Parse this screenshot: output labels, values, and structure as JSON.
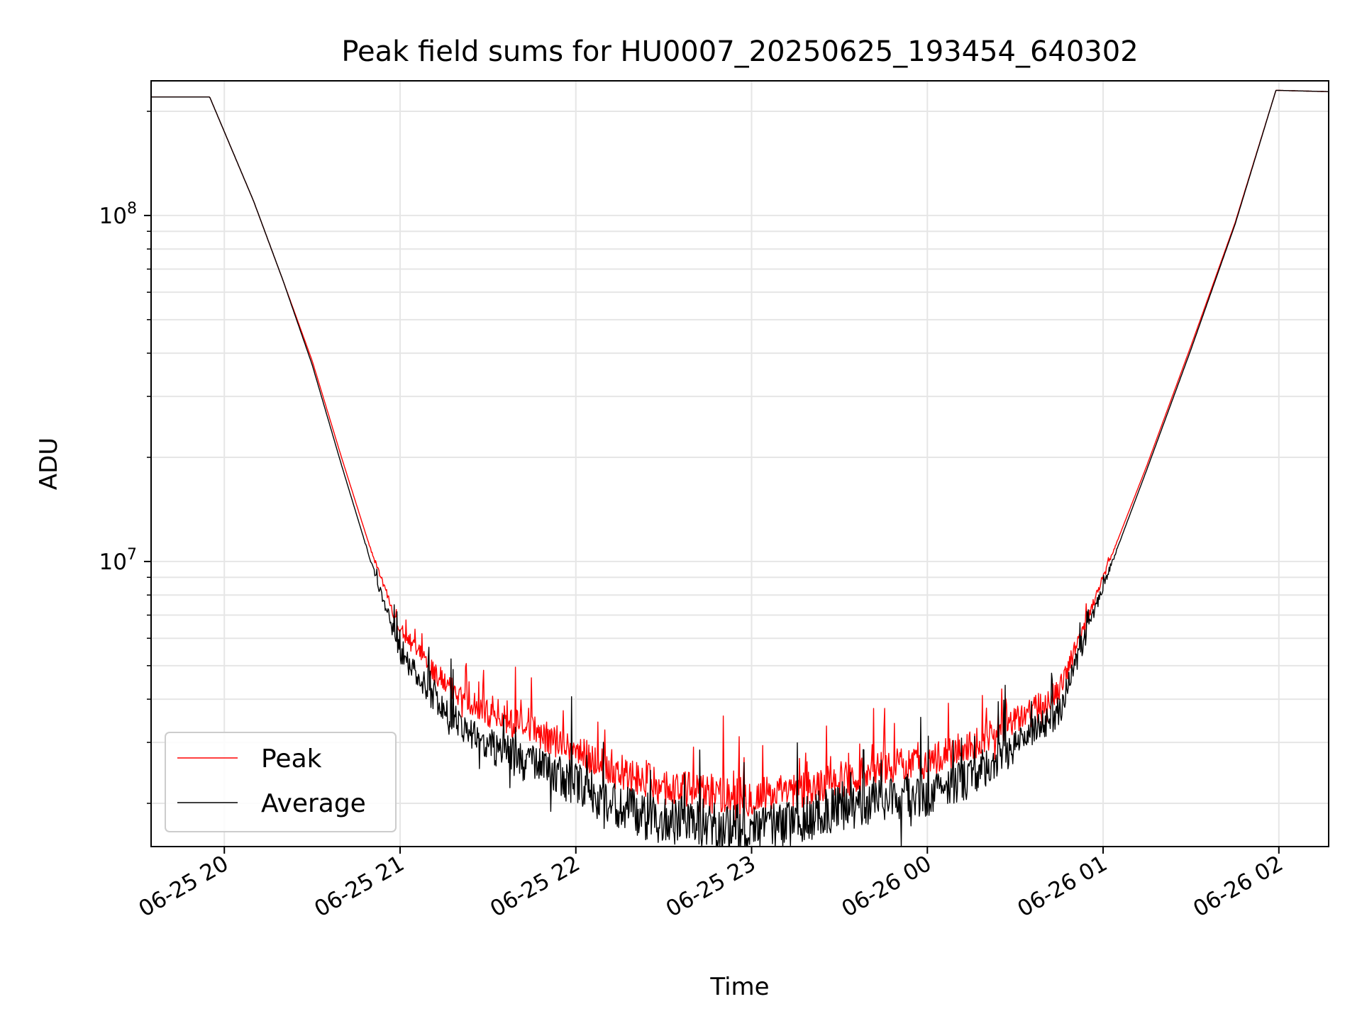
{
  "chart_data": {
    "type": "line",
    "title": "Peak field sums for HU0007_20250625_193454_640302",
    "xlabel": "Time",
    "ylabel": "ADU",
    "y_scale": "log",
    "ylim": [
      1500000,
      245000000
    ],
    "xlim": [
      "2025-06-25 19:35",
      "2025-06-26 02:17"
    ],
    "x_ticks": [
      {
        "label": "06-25 20",
        "value": "2025-06-25 20:00"
      },
      {
        "label": "06-25 21",
        "value": "2025-06-25 21:00"
      },
      {
        "label": "06-25 22",
        "value": "2025-06-25 22:00"
      },
      {
        "label": "06-25 23",
        "value": "2025-06-25 23:00"
      },
      {
        "label": "06-26 00",
        "value": "2025-06-26 00:00"
      },
      {
        "label": "06-26 01",
        "value": "2025-06-26 01:00"
      },
      {
        "label": "06-26 02",
        "value": "2025-06-26 02:00"
      }
    ],
    "y_ticks": [
      {
        "base": "10",
        "exp": "7",
        "value": 10000000
      },
      {
        "base": "10",
        "exp": "8",
        "value": 100000000
      }
    ],
    "grid": true,
    "legend_position": "lower-left",
    "series": [
      {
        "name": "Peak",
        "color": "#ff0000",
        "x": [
          "2025-06-25 19:35",
          "2025-06-25 19:55",
          "2025-06-25 20:10",
          "2025-06-25 20:20",
          "2025-06-25 20:30",
          "2025-06-25 20:40",
          "2025-06-25 20:50",
          "2025-06-25 21:00",
          "2025-06-25 21:15",
          "2025-06-25 21:30",
          "2025-06-25 21:45",
          "2025-06-25 22:00",
          "2025-06-25 22:15",
          "2025-06-25 22:30",
          "2025-06-25 22:45",
          "2025-06-25 23:00",
          "2025-06-25 23:15",
          "2025-06-25 23:30",
          "2025-06-25 23:45",
          "2025-06-26 00:00",
          "2025-06-26 00:15",
          "2025-06-26 00:30",
          "2025-06-26 00:45",
          "2025-06-26 01:00",
          "2025-06-26 01:15",
          "2025-06-26 01:30",
          "2025-06-26 01:45",
          "2025-06-26 01:59",
          "2025-06-26 02:17"
        ],
        "values": [
          220000000,
          220000000,
          110000000,
          65000000,
          38000000,
          20000000,
          10800000,
          6300000,
          4400000,
          3600000,
          3200000,
          2800000,
          2400000,
          2200000,
          2100000,
          2050000,
          2100000,
          2300000,
          2500000,
          2600000,
          2900000,
          3400000,
          4200000,
          9000000,
          19000000,
          42000000,
          95000000,
          230000000,
          228000000
        ],
        "noise": 0.12,
        "noise_bias": 0.08
      },
      {
        "name": "Average",
        "color": "#000000",
        "x": [
          "2025-06-25 19:35",
          "2025-06-25 19:55",
          "2025-06-25 20:10",
          "2025-06-25 20:20",
          "2025-06-25 20:30",
          "2025-06-25 20:40",
          "2025-06-25 20:50",
          "2025-06-25 21:00",
          "2025-06-25 21:15",
          "2025-06-25 21:30",
          "2025-06-25 21:45",
          "2025-06-25 22:00",
          "2025-06-25 22:15",
          "2025-06-25 22:30",
          "2025-06-25 22:45",
          "2025-06-25 23:00",
          "2025-06-25 23:15",
          "2025-06-25 23:30",
          "2025-06-25 23:45",
          "2025-06-26 00:00",
          "2025-06-26 00:15",
          "2025-06-26 00:30",
          "2025-06-26 00:45",
          "2025-06-26 01:00",
          "2025-06-26 01:15",
          "2025-06-26 01:30",
          "2025-06-26 01:45",
          "2025-06-26 01:59",
          "2025-06-26 02:17"
        ],
        "values": [
          220000000,
          220000000,
          110000000,
          65000000,
          37000000,
          19000000,
          10000000,
          5500000,
          3700000,
          3000000,
          2600000,
          2300000,
          1950000,
          1800000,
          1750000,
          1700000,
          1800000,
          1950000,
          2100000,
          2150000,
          2400000,
          2900000,
          3700000,
          8500000,
          18500000,
          41000000,
          94000000,
          230000000,
          228000000
        ],
        "noise": 0.14,
        "noise_bias": -0.05
      }
    ]
  }
}
